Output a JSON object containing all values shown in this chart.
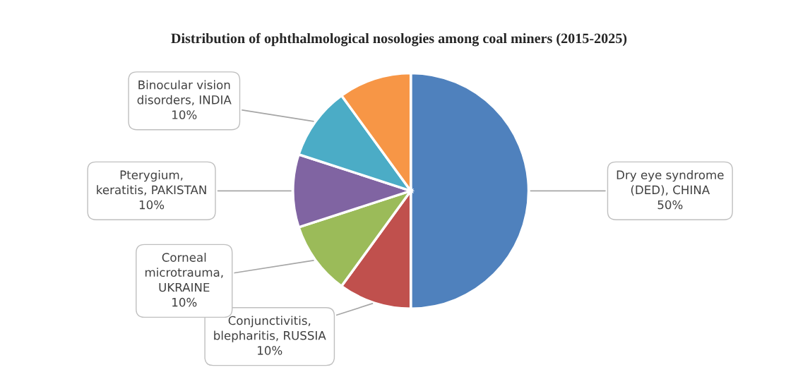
{
  "chart_data": {
    "type": "pie",
    "title": "Distribution of ophthalmological nosologies among coal miners (2015-2025)",
    "categories": [
      "Dry eye syndrome\n(DED), CHINA",
      "Conjunctivitis,\nblepharitis, RUSSIA",
      "Corneal\nmicrotrauma,\nUKRAINE",
      "Pterygium,\nkeratitis, PAKISTAN",
      "Binocular vision\ndisorders, INDIA",
      null
    ],
    "values": [
      50,
      10,
      10,
      10,
      10,
      10
    ],
    "colors": [
      "#4f81bd",
      "#c0504d",
      "#9bbb59",
      "#8064a2",
      "#4bacc6",
      "#f79646"
    ],
    "value_labels": [
      "50%",
      "10%",
      "10%",
      "10%",
      "10%",
      null
    ],
    "legend": false
  }
}
